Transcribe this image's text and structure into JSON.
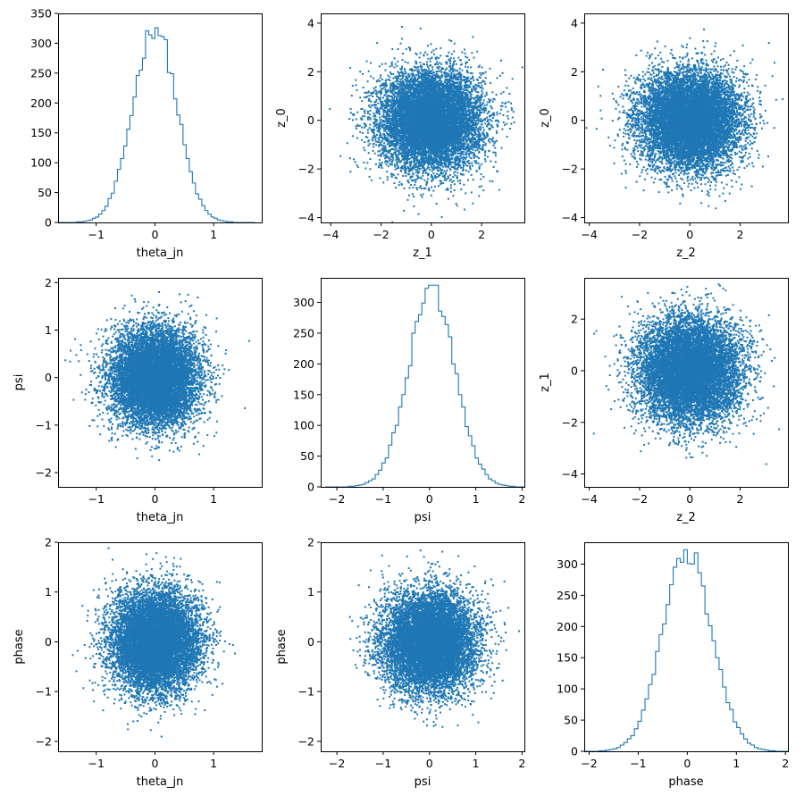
{
  "figure": {
    "background": "#ffffff",
    "mark_color": "#1f77b4"
  },
  "chart_data": [
    {
      "type": "histogram",
      "param": "theta_jn",
      "xlabel": "theta_jn",
      "ylabel": "",
      "xlim": [
        -1.65,
        1.82
      ],
      "ylim": [
        0,
        350
      ],
      "xticks": [
        -1,
        0,
        1
      ],
      "yticks": [
        0,
        50,
        100,
        150,
        200,
        250,
        300,
        350
      ],
      "mean": 0.0,
      "sd": 0.37,
      "peak": 332
    },
    {
      "type": "scatter",
      "xparam": "z_1",
      "yparam": "z_0",
      "xlabel": "z_1",
      "ylabel": "z_0",
      "xlim": [
        -4.4,
        3.7
      ],
      "ylim": [
        -4.2,
        4.4
      ],
      "xticks": [
        -4,
        -2,
        0,
        2
      ],
      "yticks": [
        -4,
        -2,
        0,
        2,
        4
      ],
      "x_sd": 1.0,
      "y_sd": 1.0,
      "n_points": 10000
    },
    {
      "type": "scatter",
      "xparam": "z_2",
      "yparam": "z_0",
      "xlabel": "z_2",
      "ylabel": "z_0",
      "xlim": [
        -4.2,
        3.9
      ],
      "ylim": [
        -4.2,
        4.4
      ],
      "xticks": [
        -4,
        -2,
        0,
        2
      ],
      "yticks": [
        -4,
        -2,
        0,
        2,
        4
      ],
      "x_sd": 1.0,
      "y_sd": 1.0,
      "n_points": 10000
    },
    {
      "type": "scatter",
      "xparam": "theta_jn",
      "yparam": "psi",
      "xlabel": "theta_jn",
      "ylabel": "psi",
      "xlim": [
        -1.65,
        1.82
      ],
      "ylim": [
        -2.3,
        2.1
      ],
      "xticks": [
        -1,
        0,
        1
      ],
      "yticks": [
        -2,
        -1,
        0,
        1,
        2
      ],
      "x_sd": 0.37,
      "y_sd": 0.5,
      "n_points": 10000
    },
    {
      "type": "histogram",
      "param": "psi",
      "xlabel": "psi",
      "ylabel": "",
      "xlim": [
        -2.35,
        2.05
      ],
      "ylim": [
        0,
        340
      ],
      "xticks": [
        -2,
        -1,
        0,
        1,
        2
      ],
      "yticks": [
        0,
        50,
        100,
        150,
        200,
        250,
        300
      ],
      "mean": 0.05,
      "sd": 0.5,
      "peak": 328
    },
    {
      "type": "scatter",
      "xparam": "z_2",
      "yparam": "z_1",
      "xlabel": "z_2",
      "ylabel": "z_1",
      "xlim": [
        -4.2,
        3.9
      ],
      "ylim": [
        -4.5,
        3.6
      ],
      "xticks": [
        -4,
        -2,
        0,
        2
      ],
      "yticks": [
        -4,
        -2,
        0,
        2
      ],
      "x_sd": 1.0,
      "y_sd": 1.0,
      "n_points": 10000
    },
    {
      "type": "scatter",
      "xparam": "theta_jn",
      "yparam": "phase",
      "xlabel": "theta_jn",
      "ylabel": "phase",
      "xlim": [
        -1.65,
        1.82
      ],
      "ylim": [
        -2.2,
        2.0
      ],
      "xticks": [
        -1,
        0,
        1
      ],
      "yticks": [
        -2,
        -1,
        0,
        1,
        2
      ],
      "x_sd": 0.37,
      "y_sd": 0.5,
      "n_points": 10000
    },
    {
      "type": "scatter",
      "xparam": "psi",
      "yparam": "phase",
      "xlabel": "psi",
      "ylabel": "phase",
      "xlim": [
        -2.35,
        2.05
      ],
      "ylim": [
        -2.2,
        2.0
      ],
      "xticks": [
        -2,
        -1,
        0,
        1,
        2
      ],
      "yticks": [
        -2,
        -1,
        0,
        1,
        2
      ],
      "x_sd": 0.5,
      "y_sd": 0.5,
      "n_points": 10000
    },
    {
      "type": "histogram",
      "param": "phase",
      "xlabel": "phase",
      "ylabel": "",
      "xlim": [
        -2.1,
        2.05
      ],
      "ylim": [
        0,
        335
      ],
      "xticks": [
        -2,
        -1,
        0,
        1,
        2
      ],
      "yticks": [
        0,
        50,
        100,
        150,
        200,
        250,
        300
      ],
      "mean": 0.0,
      "sd": 0.5,
      "peak": 323
    }
  ]
}
